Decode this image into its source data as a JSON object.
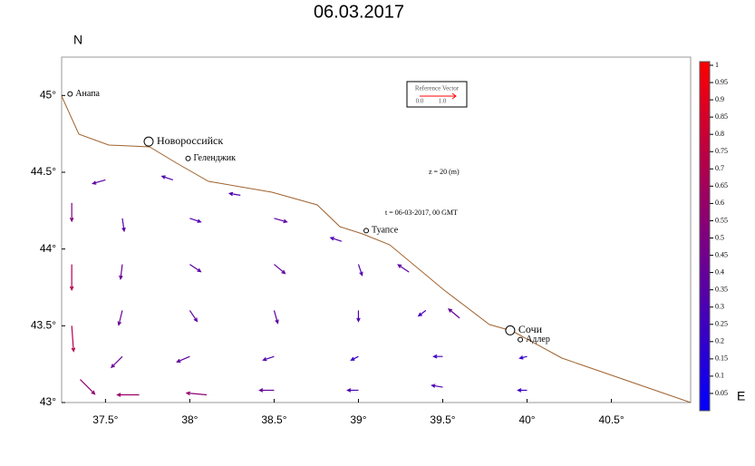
{
  "chart_data": {
    "type": "vector",
    "title": "06.03.2017",
    "y_label": "N",
    "x_label": "E",
    "xlim": [
      37.24,
      40.97
    ],
    "ylim": [
      43,
      45.25
    ],
    "xticks": [
      {
        "value": 37.5,
        "label": "37.5°"
      },
      {
        "value": 38,
        "label": "38°"
      },
      {
        "value": 38.5,
        "label": "38.5°"
      },
      {
        "value": 39,
        "label": "39°"
      },
      {
        "value": 39.5,
        "label": "39.5°"
      },
      {
        "value": 40,
        "label": "40°"
      },
      {
        "value": 40.5,
        "label": "40.5°"
      }
    ],
    "yticks": [
      {
        "value": 43,
        "label": "43°"
      },
      {
        "value": 43.5,
        "label": "43.5°"
      },
      {
        "value": 44,
        "label": "44°"
      },
      {
        "value": 44.5,
        "label": "44.5°"
      },
      {
        "value": 45,
        "label": "45°"
      }
    ],
    "clim": [
      0,
      1
    ],
    "cticks": [
      0.05,
      0.1,
      0.15,
      0.2,
      0.25,
      0.3,
      0.35,
      0.4,
      0.45,
      0.5,
      0.55,
      0.6,
      0.65,
      0.7,
      0.75,
      0.8,
      0.85,
      0.9,
      0.95,
      1
    ],
    "colors": [
      "#0000ff",
      "#ff0000"
    ],
    "annotations": [
      "z = 20 (m)",
      "t = 06-03-2017, 00 GMT"
    ],
    "reference_vector": {
      "label": "Reference Vector",
      "start": {
        "value": 0,
        "label": "0.0"
      },
      "end": {
        "value": 1,
        "label": "1.0"
      }
    },
    "places": [
      {
        "name": "Анапа",
        "lon": 37.29,
        "lat": 45.01,
        "marker": "small"
      },
      {
        "name": "Новороссийск",
        "lon": 37.756,
        "lat": 44.7,
        "marker": "large"
      },
      {
        "name": "Геленджик",
        "lon": 37.99,
        "lat": 44.59,
        "marker": "small"
      },
      {
        "name": "Туапсе",
        "lon": 39.046,
        "lat": 44.12,
        "marker": "small"
      },
      {
        "name": "Сочи",
        "lon": 39.9,
        "lat": 43.47,
        "marker": "large"
      },
      {
        "name": "Адлер",
        "lon": 39.96,
        "lat": 43.41,
        "marker": "small"
      }
    ],
    "vectors": [
      [
        37.3,
        44.3,
        0,
        -0.5
      ],
      [
        37.3,
        43.9,
        0,
        -0.7
      ],
      [
        37.3,
        43.5,
        0.05,
        -0.7
      ],
      [
        37.35,
        43.15,
        0.4,
        -0.4
      ],
      [
        37.7,
        43.05,
        -0.6,
        0
      ],
      [
        38.1,
        43.05,
        -0.55,
        0.05
      ],
      [
        38.5,
        43.08,
        -0.4,
        0
      ],
      [
        39.0,
        43.08,
        -0.3,
        0
      ],
      [
        39.5,
        43.1,
        -0.3,
        0.05
      ],
      [
        40.0,
        43.08,
        -0.25,
        0
      ],
      [
        37.6,
        43.3,
        -0.3,
        -0.3
      ],
      [
        38.0,
        43.3,
        -0.35,
        -0.15
      ],
      [
        38.5,
        43.3,
        -0.3,
        -0.1
      ],
      [
        39.0,
        43.3,
        -0.2,
        -0.1
      ],
      [
        39.5,
        43.3,
        -0.25,
        0
      ],
      [
        40.0,
        43.3,
        -0.2,
        -0.05
      ],
      [
        37.6,
        43.6,
        -0.1,
        -0.4
      ],
      [
        38.0,
        43.6,
        0.2,
        -0.3
      ],
      [
        38.5,
        43.6,
        0.1,
        -0.35
      ],
      [
        39.0,
        43.6,
        0,
        -0.3
      ],
      [
        39.4,
        43.6,
        -0.2,
        -0.15
      ],
      [
        37.6,
        43.9,
        -0.05,
        -0.4
      ],
      [
        38.0,
        43.9,
        0.3,
        -0.2
      ],
      [
        38.5,
        43.9,
        0.3,
        -0.25
      ],
      [
        39.0,
        43.9,
        0.1,
        -0.3
      ],
      [
        37.6,
        44.2,
        0.05,
        -0.35
      ],
      [
        38.0,
        44.2,
        0.3,
        -0.1
      ],
      [
        38.5,
        44.2,
        0.35,
        -0.1
      ],
      [
        37.5,
        44.45,
        -0.35,
        -0.1
      ],
      [
        37.9,
        44.45,
        -0.3,
        0.1
      ],
      [
        38.3,
        44.35,
        -0.3,
        0.05
      ],
      [
        39.3,
        43.85,
        -0.3,
        0.2
      ],
      [
        39.6,
        43.55,
        -0.3,
        0.25
      ],
      [
        38.9,
        44.05,
        -0.3,
        0.1
      ]
    ]
  }
}
